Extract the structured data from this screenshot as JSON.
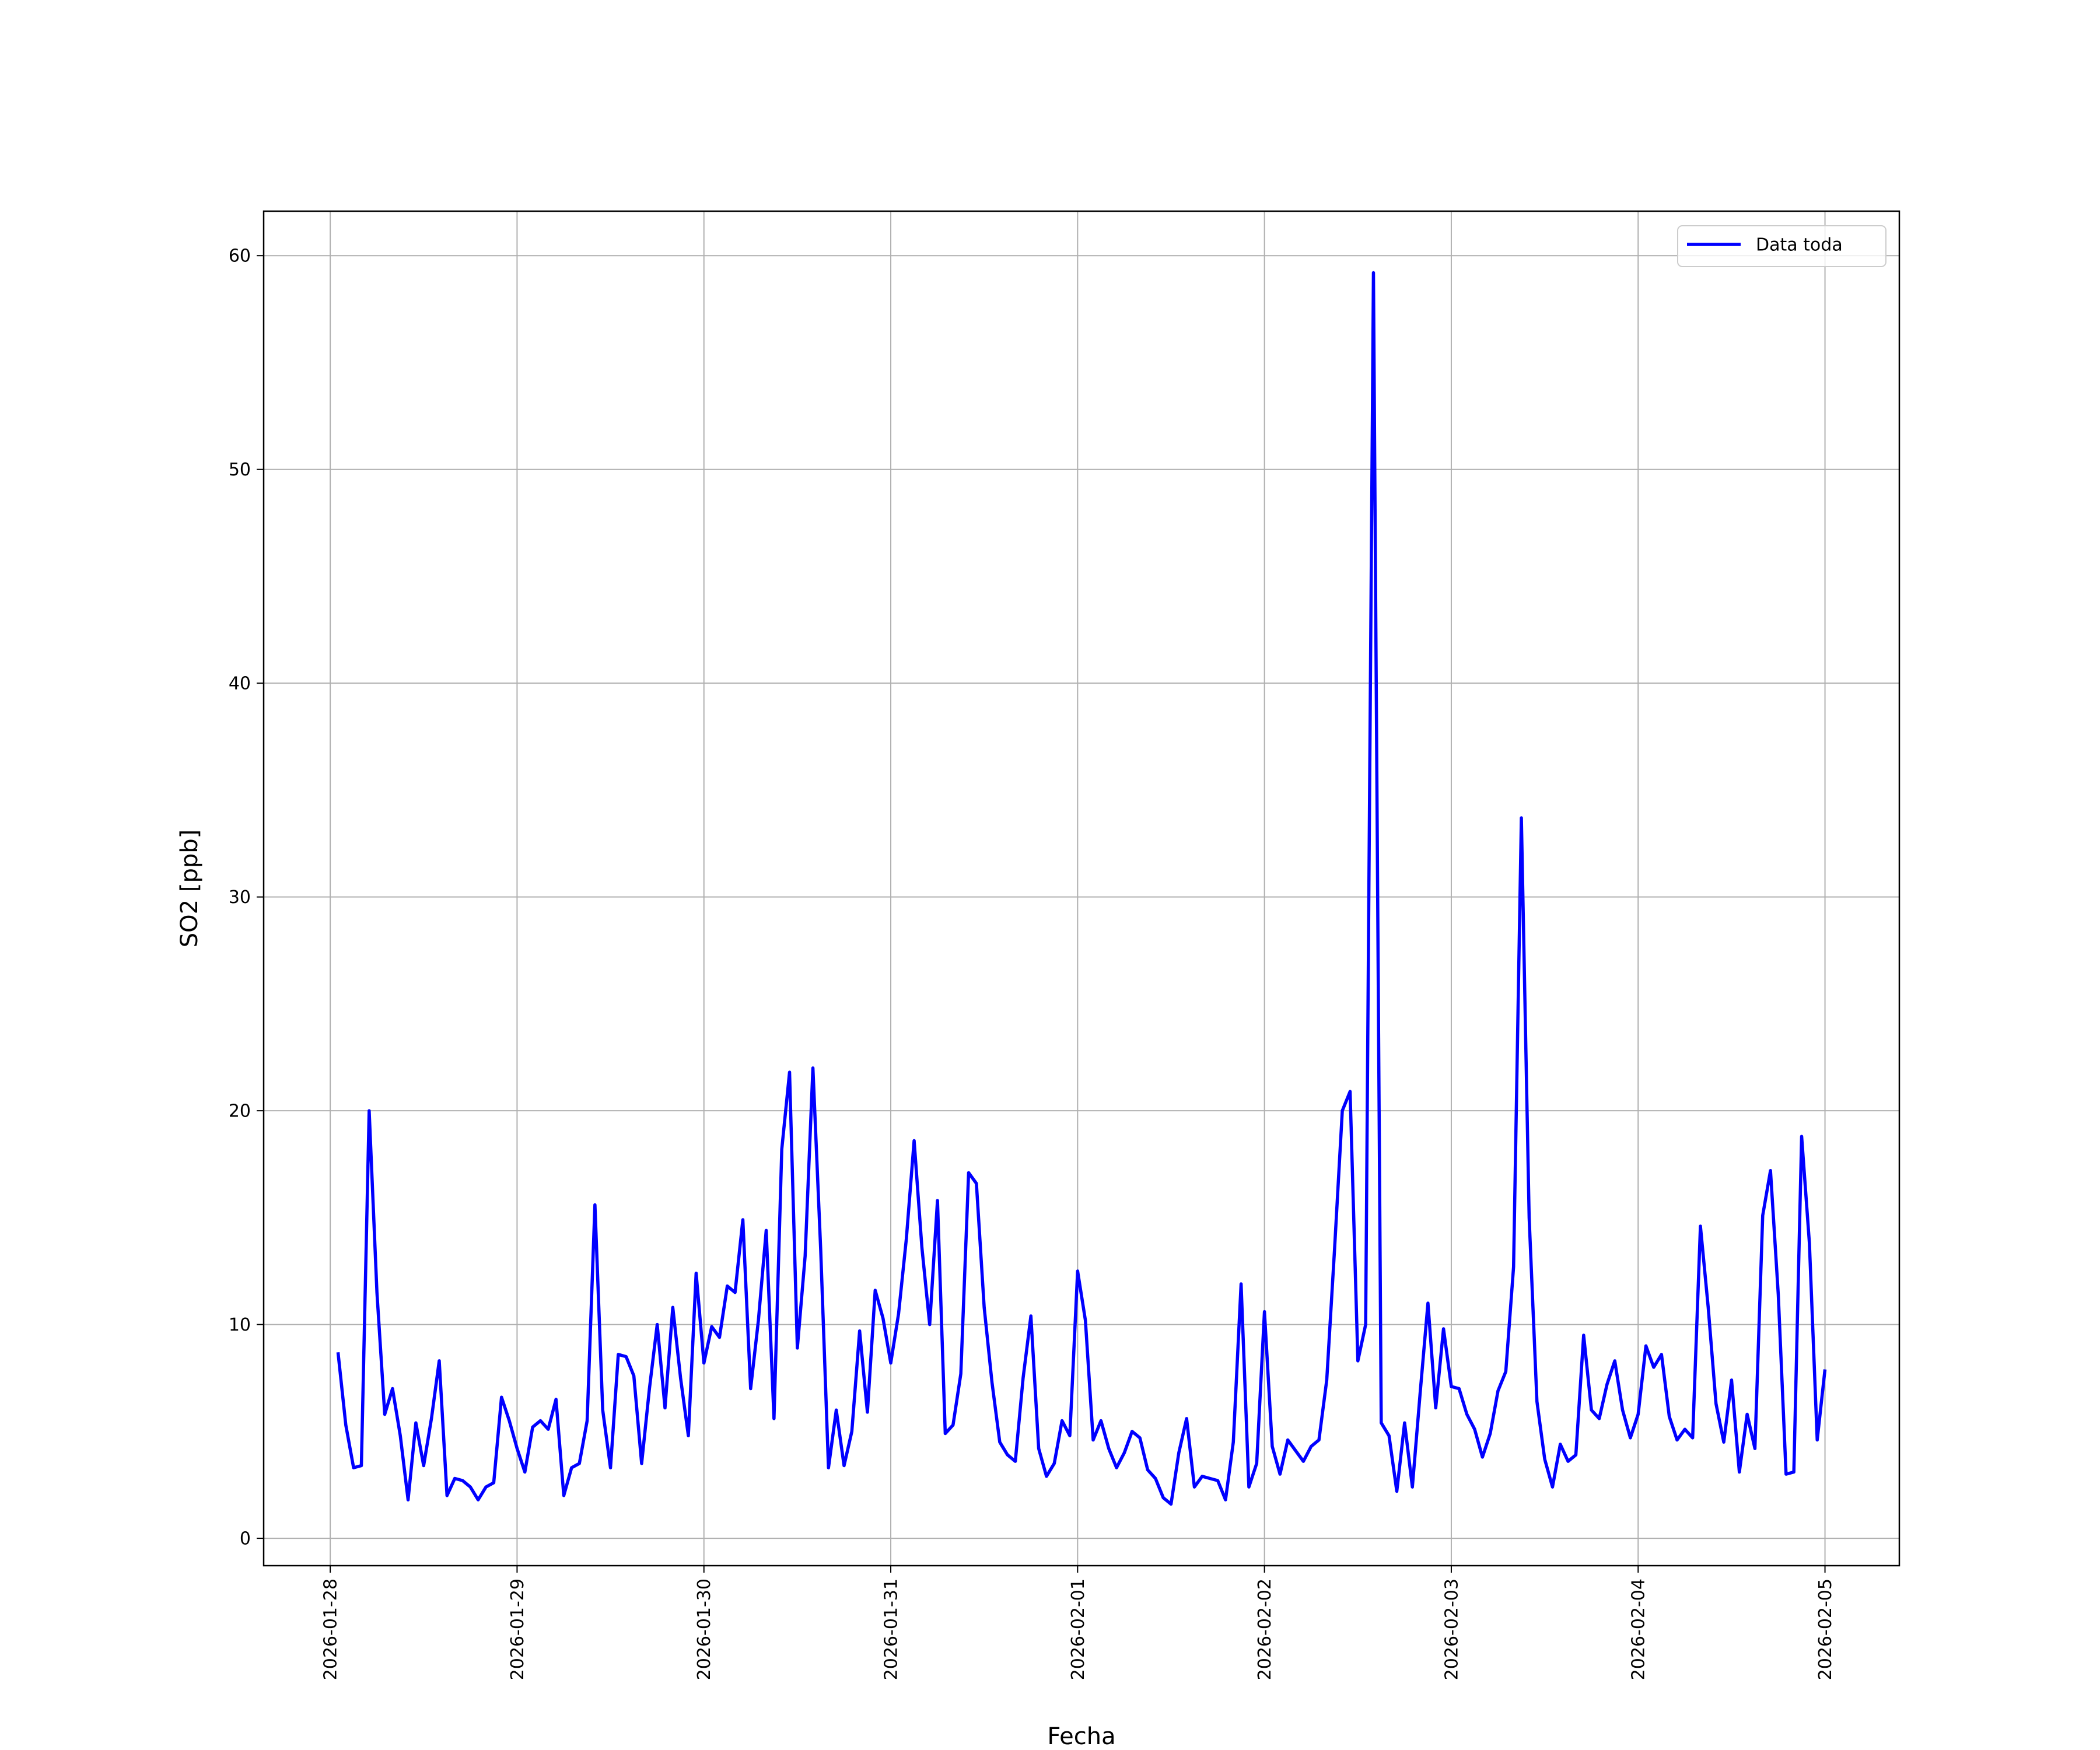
{
  "chart_data": {
    "type": "line",
    "xlabel": "Fecha",
    "ylabel": "SO2 [ppb]",
    "xlim": [
      "2026-01-27 15:27",
      "2026-02-05 09:33"
    ],
    "xticks": [
      "2026-01-28",
      "2026-01-29",
      "2026-01-30",
      "2026-01-31",
      "2026-02-01",
      "2026-02-02",
      "2026-02-03",
      "2026-02-04",
      "2026-02-05"
    ],
    "ylim": [
      -1.28,
      62.08
    ],
    "yticks": [
      0,
      10,
      20,
      30,
      40,
      50,
      60
    ],
    "grid": true,
    "legend": "upper right",
    "x": [
      "2026-01-28 01:00",
      "2026-01-28 02:00",
      "2026-01-28 03:00",
      "2026-01-28 04:00",
      "2026-01-28 05:00",
      "2026-01-28 06:00",
      "2026-01-28 07:00",
      "2026-01-28 08:00",
      "2026-01-28 09:00",
      "2026-01-28 10:00",
      "2026-01-28 11:00",
      "2026-01-28 12:00",
      "2026-01-28 13:00",
      "2026-01-28 14:00",
      "2026-01-28 15:00",
      "2026-01-28 16:00",
      "2026-01-28 17:00",
      "2026-01-28 18:00",
      "2026-01-28 19:00",
      "2026-01-28 20:00",
      "2026-01-28 21:00",
      "2026-01-28 22:00",
      "2026-01-28 23:00",
      "2026-01-29 00:00",
      "2026-01-29 01:00",
      "2026-01-29 02:00",
      "2026-01-29 03:00",
      "2026-01-29 04:00",
      "2026-01-29 05:00",
      "2026-01-29 06:00",
      "2026-01-29 07:00",
      "2026-01-29 08:00",
      "2026-01-29 09:00",
      "2026-01-29 10:00",
      "2026-01-29 11:00",
      "2026-01-29 12:00",
      "2026-01-29 13:00",
      "2026-01-29 14:00",
      "2026-01-29 15:00",
      "2026-01-29 16:00",
      "2026-01-29 17:00",
      "2026-01-29 18:00",
      "2026-01-29 19:00",
      "2026-01-29 20:00",
      "2026-01-29 21:00",
      "2026-01-29 22:00",
      "2026-01-29 23:00",
      "2026-01-30 00:00",
      "2026-01-30 01:00",
      "2026-01-30 02:00",
      "2026-01-30 03:00",
      "2026-01-30 04:00",
      "2026-01-30 05:00",
      "2026-01-30 06:00",
      "2026-01-30 07:00",
      "2026-01-30 08:00",
      "2026-01-30 09:00",
      "2026-01-30 10:00",
      "2026-01-30 11:00",
      "2026-01-30 12:00",
      "2026-01-30 13:00",
      "2026-01-30 14:00",
      "2026-01-30 15:00",
      "2026-01-30 16:00",
      "2026-01-30 17:00",
      "2026-01-30 18:00",
      "2026-01-30 19:00",
      "2026-01-30 20:00",
      "2026-01-30 21:00",
      "2026-01-30 22:00",
      "2026-01-30 23:00",
      "2026-01-31 00:00",
      "2026-01-31 01:00",
      "2026-01-31 02:00",
      "2026-01-31 03:00",
      "2026-01-31 04:00",
      "2026-01-31 05:00",
      "2026-01-31 06:00",
      "2026-01-31 07:00",
      "2026-01-31 08:00",
      "2026-01-31 09:00",
      "2026-01-31 10:00",
      "2026-01-31 11:00",
      "2026-01-31 12:00",
      "2026-01-31 13:00",
      "2026-01-31 14:00",
      "2026-01-31 15:00",
      "2026-01-31 16:00",
      "2026-01-31 17:00",
      "2026-01-31 18:00",
      "2026-01-31 19:00",
      "2026-01-31 20:00",
      "2026-01-31 21:00",
      "2026-01-31 22:00",
      "2026-01-31 23:00",
      "2026-02-01 00:00",
      "2026-02-01 01:00",
      "2026-02-01 02:00",
      "2026-02-01 03:00",
      "2026-02-01 04:00",
      "2026-02-01 05:00",
      "2026-02-01 06:00",
      "2026-02-01 07:00",
      "2026-02-01 08:00",
      "2026-02-01 09:00",
      "2026-02-01 10:00",
      "2026-02-01 11:00",
      "2026-02-01 12:00",
      "2026-02-01 13:00",
      "2026-02-01 14:00",
      "2026-02-01 15:00",
      "2026-02-01 16:00",
      "2026-02-01 17:00",
      "2026-02-01 18:00",
      "2026-02-01 19:00",
      "2026-02-01 20:00",
      "2026-02-01 21:00",
      "2026-02-01 22:00",
      "2026-02-01 23:00",
      "2026-02-02 00:00",
      "2026-02-02 01:00",
      "2026-02-02 02:00",
      "2026-02-02 03:00",
      "2026-02-02 04:00",
      "2026-02-02 05:00",
      "2026-02-02 06:00",
      "2026-02-02 07:00",
      "2026-02-02 08:00",
      "2026-02-02 09:00",
      "2026-02-02 10:00",
      "2026-02-02 11:00",
      "2026-02-02 12:00",
      "2026-02-02 13:00",
      "2026-02-02 14:00",
      "2026-02-02 15:00",
      "2026-02-02 16:00",
      "2026-02-02 17:00",
      "2026-02-02 18:00",
      "2026-02-02 19:00",
      "2026-02-02 20:00",
      "2026-02-02 21:00",
      "2026-02-02 22:00",
      "2026-02-02 23:00",
      "2026-02-03 00:00",
      "2026-02-03 01:00",
      "2026-02-03 02:00",
      "2026-02-03 03:00",
      "2026-02-03 04:00",
      "2026-02-03 05:00",
      "2026-02-03 06:00",
      "2026-02-03 07:00",
      "2026-02-03 08:00",
      "2026-02-03 09:00",
      "2026-02-03 10:00",
      "2026-02-03 11:00",
      "2026-02-03 12:00",
      "2026-02-03 13:00",
      "2026-02-03 14:00",
      "2026-02-03 15:00",
      "2026-02-03 16:00",
      "2026-02-03 17:00",
      "2026-02-03 18:00",
      "2026-02-03 19:00",
      "2026-02-03 20:00",
      "2026-02-03 21:00",
      "2026-02-03 22:00",
      "2026-02-03 23:00",
      "2026-02-04 00:00",
      "2026-02-04 01:00",
      "2026-02-04 02:00",
      "2026-02-04 03:00",
      "2026-02-04 04:00",
      "2026-02-04 05:00",
      "2026-02-04 06:00",
      "2026-02-04 07:00",
      "2026-02-04 08:00",
      "2026-02-04 09:00",
      "2026-02-04 10:00",
      "2026-02-04 11:00",
      "2026-02-04 12:00",
      "2026-02-04 13:00",
      "2026-02-04 14:00",
      "2026-02-04 15:00",
      "2026-02-04 16:00",
      "2026-02-04 17:00",
      "2026-02-04 18:00",
      "2026-02-04 19:00",
      "2026-02-04 20:00",
      "2026-02-04 21:00",
      "2026-02-04 22:00",
      "2026-02-04 23:00",
      "2026-02-05 00:00"
    ],
    "series": [
      {
        "name": "Data toda",
        "color": "#0000ff",
        "values": [
          8.7,
          5.3,
          3.3,
          3.4,
          20.0,
          11.5,
          5.8,
          7.0,
          4.8,
          1.8,
          5.4,
          3.4,
          5.6,
          8.3,
          2.0,
          2.8,
          2.7,
          2.4,
          1.8,
          2.4,
          2.6,
          6.6,
          5.5,
          4.2,
          3.1,
          5.2,
          5.5,
          5.1,
          6.5,
          2.0,
          3.3,
          3.5,
          5.5,
          15.6,
          6.0,
          3.3,
          8.6,
          8.5,
          7.6,
          3.5,
          7.0,
          10.0,
          6.1,
          10.8,
          7.5,
          4.8,
          12.4,
          8.2,
          9.9,
          9.4,
          11.8,
          11.5,
          14.9,
          7.0,
          10.2,
          14.4,
          5.6,
          18.2,
          21.8,
          8.9,
          13.2,
          22.0,
          13.5,
          3.3,
          6.0,
          3.4,
          5.0,
          9.7,
          5.9,
          11.6,
          10.3,
          8.2,
          10.5,
          14.0,
          18.6,
          13.6,
          10.0,
          15.8,
          4.9,
          5.3,
          7.7,
          17.1,
          16.6,
          10.8,
          7.3,
          4.5,
          3.9,
          3.6,
          7.5,
          10.4,
          4.2,
          2.9,
          3.5,
          5.5,
          4.8,
          12.5,
          10.2,
          4.6,
          5.5,
          4.2,
          3.3,
          4.0,
          5.0,
          4.7,
          3.2,
          2.8,
          1.9,
          1.6,
          4.0,
          5.6,
          2.4,
          2.9,
          2.8,
          2.7,
          1.8,
          4.5,
          11.9,
          2.4,
          3.5,
          10.6,
          4.3,
          3.0,
          4.6,
          4.1,
          3.6,
          4.3,
          4.6,
          7.4,
          13.5,
          20.0,
          20.9,
          8.3,
          10.0,
          59.2,
          5.4,
          4.8,
          2.2,
          5.4,
          2.4,
          6.8,
          11.0,
          6.1,
          9.8,
          7.1,
          7.0,
          5.8,
          5.1,
          3.8,
          4.9,
          6.9,
          7.8,
          12.7,
          33.7,
          15.0,
          6.4,
          3.7,
          2.4,
          4.4,
          3.6,
          3.9,
          9.5,
          6.0,
          5.6,
          7.2,
          8.3,
          6.0,
          4.7,
          5.8,
          9.0,
          8.0,
          8.6,
          5.7,
          4.6,
          5.1,
          4.7,
          14.6,
          10.8,
          6.3,
          4.5,
          7.4,
          3.1,
          5.8,
          4.2,
          15.1,
          17.2,
          11.4,
          3.0,
          3.1,
          18.8,
          13.8,
          4.6,
          7.9
        ]
      }
    ]
  }
}
